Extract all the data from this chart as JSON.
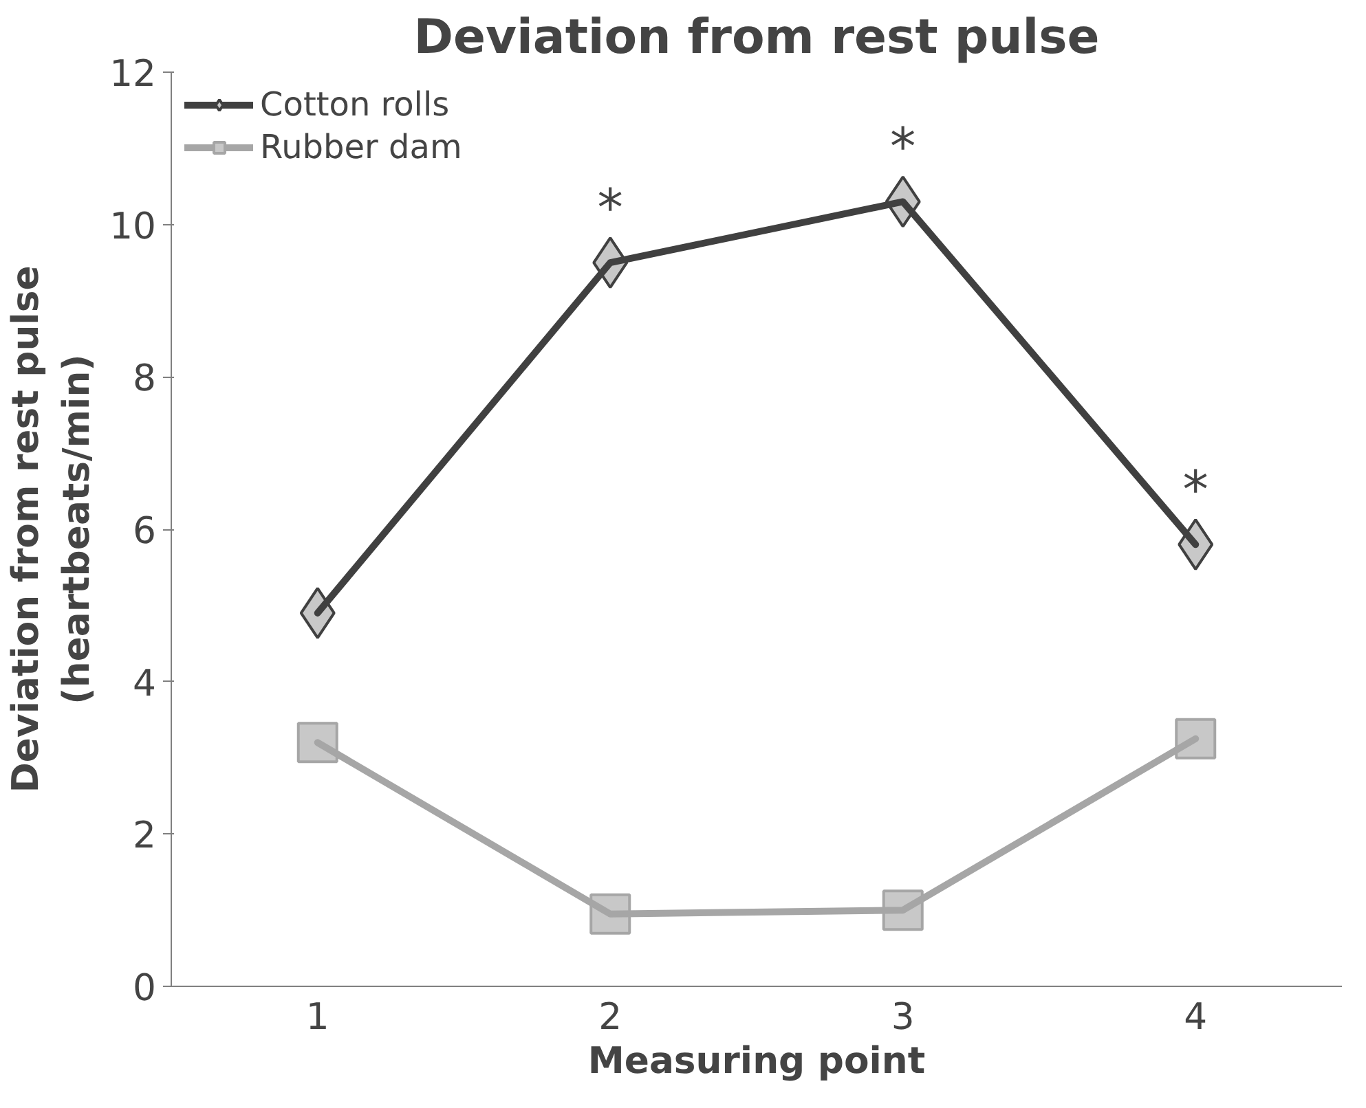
{
  "chart_data": {
    "type": "line",
    "title": "Deviation from rest pulse",
    "xlabel": "Measuring point",
    "ylabel": "Deviation from rest pulse\n(heartbeats/min)",
    "categories": [
      "1",
      "2",
      "3",
      "4"
    ],
    "series": [
      {
        "name": "Cotton rolls",
        "color": "#404040",
        "marker": "diamond",
        "values": [
          4.9,
          9.5,
          10.3,
          5.8
        ]
      },
      {
        "name": "Rubber dam",
        "color": "#a6a6a6",
        "marker": "square",
        "values": [
          3.2,
          0.95,
          1.0,
          3.25
        ]
      }
    ],
    "annotations": [
      {
        "text": "*",
        "x": "2",
        "y": 9.5
      },
      {
        "text": "*",
        "x": "3",
        "y": 10.3
      },
      {
        "text": "*",
        "x": "4",
        "y": 5.8
      }
    ],
    "ylim": [
      0,
      12
    ],
    "yticks": [
      0,
      2,
      4,
      6,
      8,
      10,
      12
    ],
    "grid": false,
    "legend": "top left",
    "line_style": "solid"
  }
}
